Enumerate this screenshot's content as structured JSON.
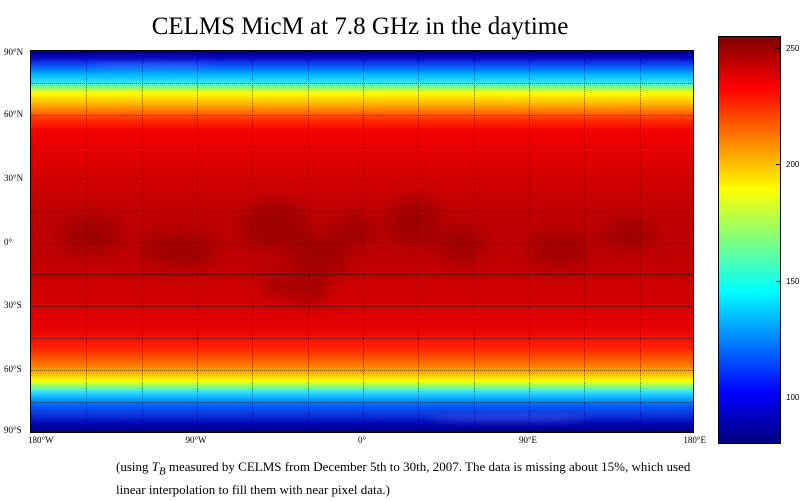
{
  "title": "CELMS MicM at 7.8 GHz in the daytime",
  "lat_labels": [
    {
      "text": "90°N",
      "value": 90
    },
    {
      "text": "60°N",
      "value": 60
    },
    {
      "text": "30°N",
      "value": 30
    },
    {
      "text": "0°",
      "value": 0
    },
    {
      "text": "30°S",
      "value": -30
    },
    {
      "text": "60°S",
      "value": -60
    },
    {
      "text": "90°S",
      "value": -90
    }
  ],
  "lon_labels": [
    {
      "text": "180°W",
      "value": -180
    },
    {
      "text": "90°W",
      "value": -90
    },
    {
      "text": "0°",
      "value": 0
    },
    {
      "text": "90°E",
      "value": 90
    },
    {
      "text": "180°E",
      "value": 180
    }
  ],
  "colorbar": {
    "min": 80,
    "max": 255,
    "ticks": [
      "250",
      "200",
      "150",
      "100"
    ],
    "tick_values": [
      250,
      200,
      150,
      100
    ],
    "colormap": "jet"
  },
  "caption": {
    "prefix": "(using ",
    "symbol": "T",
    "subscript": "B",
    "suffix": " measured by CELMS from December 5th to 30th, 2007. The data is missing about 15%, which used linear interpolation to fill them with near pixel data.)"
  }
}
